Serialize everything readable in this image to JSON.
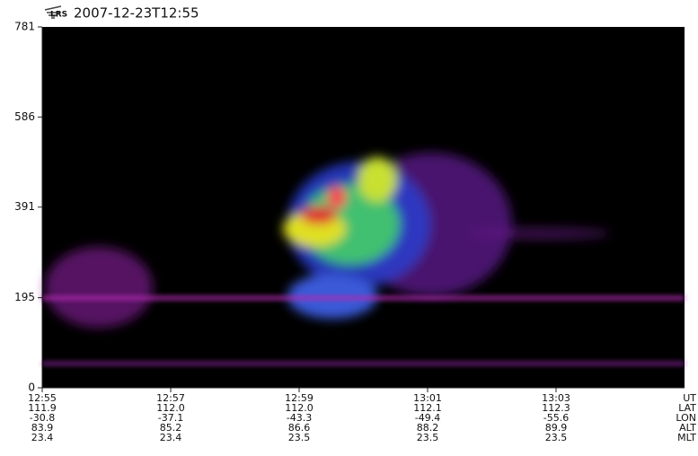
{
  "chart_data": {
    "type": "spectrogram",
    "logo_text": "LRS",
    "title": "2007-12-23T12:55",
    "ylim": [
      0,
      781
    ],
    "yticks": [
      0,
      195,
      391,
      586,
      781
    ],
    "x_rows": [
      {
        "name": "UT",
        "labels": [
          "12:55",
          "12:57",
          "12:59",
          "13:01",
          "13:03"
        ]
      },
      {
        "name": "LAT",
        "labels": [
          "111.9",
          "112.0",
          "112.0",
          "112.1",
          "112.3"
        ]
      },
      {
        "name": "LON",
        "labels": [
          "-30.8",
          "-37.1",
          "-43.3",
          "-49.4",
          "-55.6"
        ]
      },
      {
        "name": "ALT",
        "labels": [
          "83.9",
          "85.2",
          "86.6",
          "88.2",
          "89.9"
        ]
      },
      {
        "name": "MLT",
        "labels": [
          "23.4",
          "23.4",
          "23.5",
          "23.5",
          "23.5"
        ]
      }
    ]
  }
}
